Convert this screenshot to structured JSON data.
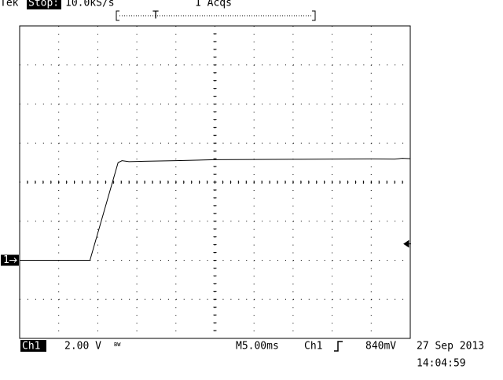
{
  "screen": {
    "brand": "Tek",
    "state": "Stop:",
    "sample_rate": "10.0kS/s",
    "acquisitions": "1 Acqs",
    "trigger_pos_marker": "T",
    "channel": "Ch1",
    "volts_per_div": "2.00 V",
    "bandwidth": "BW",
    "timebase": "M5.00ms",
    "trigger_source": "Ch1",
    "date": "27 Sep 2013",
    "time": "14:04:59",
    "channel_marker": "1"
  },
  "chart_data": {
    "type": "line",
    "xlim": [
      0,
      50
    ],
    "ylim": [
      -4,
      12
    ],
    "trigger_level": {
      "value": 0.84,
      "label": "840mV"
    },
    "x": [
      0,
      9.0,
      12.6,
      13.1,
      14.0,
      16.0,
      20.0,
      25.0,
      30.0,
      35.0,
      40.0,
      45.0,
      48.0,
      49.0,
      50.0
    ],
    "series": [
      {
        "name": "Ch1",
        "color": "#000000",
        "values": [
          0,
          0,
          5.0,
          5.1,
          5.05,
          5.07,
          5.1,
          5.15,
          5.16,
          5.17,
          5.18,
          5.19,
          5.18,
          5.22,
          5.2
        ]
      }
    ]
  }
}
